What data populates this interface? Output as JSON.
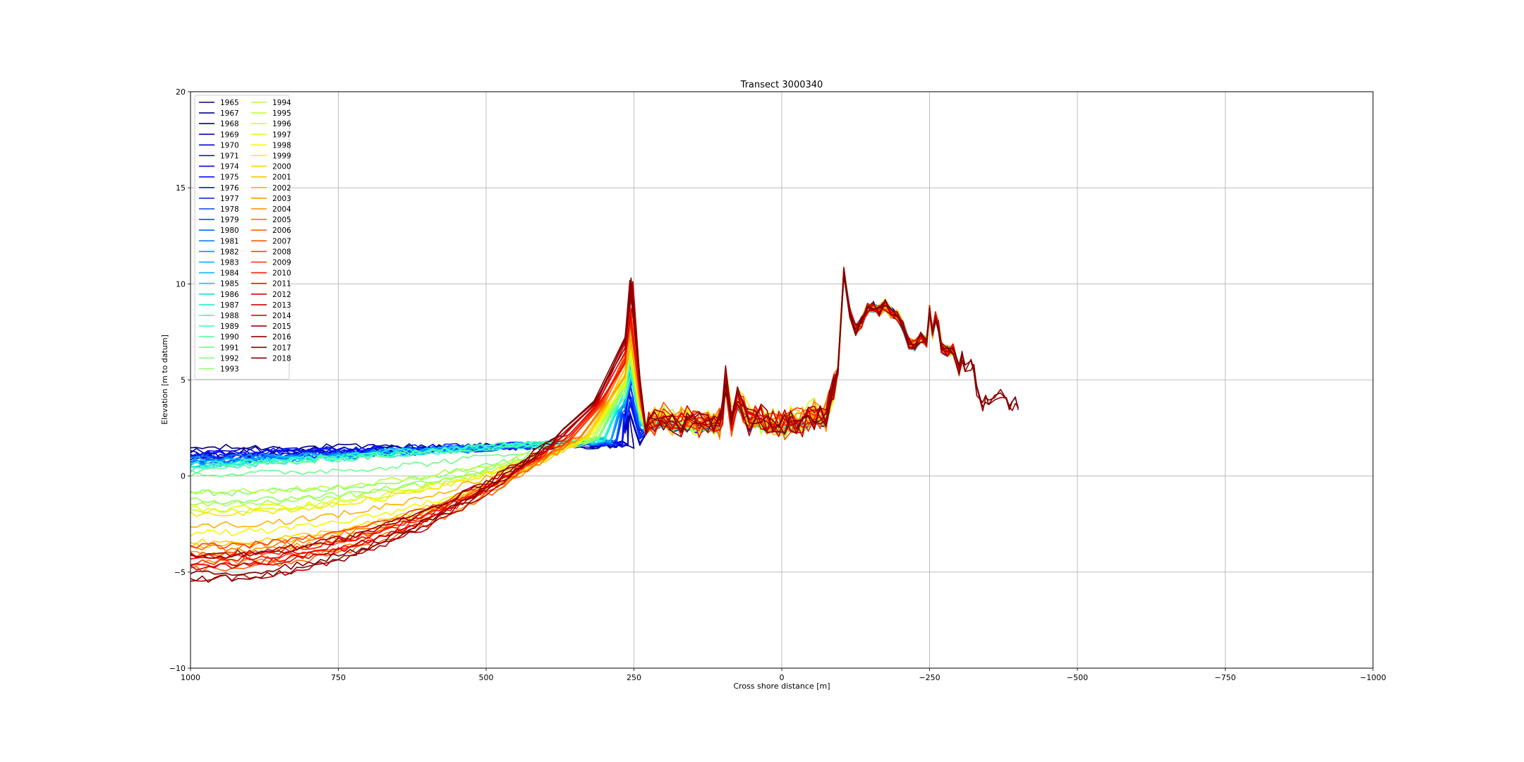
{
  "chart_data": {
    "type": "line",
    "title": "Transect 3000340",
    "xlabel": "Cross shore distance [m]",
    "ylabel": "Elevation [m to datum]",
    "xlim": [
      1000,
      -1000
    ],
    "ylim": [
      -10,
      20
    ],
    "x_ticks": [
      1000,
      750,
      500,
      250,
      0,
      -250,
      -500,
      -750,
      -1000
    ],
    "x_tick_labels": [
      "1000",
      "750",
      "500",
      "250",
      "0",
      "−250",
      "−500",
      "−750",
      "−1000"
    ],
    "y_ticks": [
      -10,
      -5,
      0,
      5,
      10,
      15,
      20
    ],
    "y_tick_labels": [
      "−10",
      "−5",
      "0",
      "5",
      "10",
      "15",
      "20"
    ],
    "grid": true,
    "legend_position": "upper-left",
    "legend_columns": 2,
    "colormap": "jet",
    "series": [
      {
        "name": "1965",
        "color": "#000080"
      },
      {
        "name": "1967",
        "color": "#00008f"
      },
      {
        "name": "1968",
        "color": "#0000a3"
      },
      {
        "name": "1969",
        "color": "#0000b6"
      },
      {
        "name": "1970",
        "color": "#0000ca"
      },
      {
        "name": "1971",
        "color": "#0000dd"
      },
      {
        "name": "1974",
        "color": "#0000f1"
      },
      {
        "name": "1975",
        "color": "#0008ff"
      },
      {
        "name": "1976",
        "color": "#0018ff"
      },
      {
        "name": "1977",
        "color": "#002cff"
      },
      {
        "name": "1978",
        "color": "#0040ff"
      },
      {
        "name": "1979",
        "color": "#0054ff"
      },
      {
        "name": "1980",
        "color": "#0068ff"
      },
      {
        "name": "1981",
        "color": "#007cff"
      },
      {
        "name": "1982",
        "color": "#0090ff"
      },
      {
        "name": "1983",
        "color": "#00a4ff"
      },
      {
        "name": "1984",
        "color": "#00b8ff"
      },
      {
        "name": "1985",
        "color": "#00ccfc"
      },
      {
        "name": "1986",
        "color": "#0ce0eb"
      },
      {
        "name": "1987",
        "color": "#1ff3d8"
      },
      {
        "name": "1988",
        "color": "#32ffc4"
      },
      {
        "name": "1989",
        "color": "#45ffb1"
      },
      {
        "name": "1990",
        "color": "#58ff9e"
      },
      {
        "name": "1991",
        "color": "#6cff8a"
      },
      {
        "name": "1992",
        "color": "#80ff77"
      },
      {
        "name": "1993",
        "color": "#93ff64"
      },
      {
        "name": "1994",
        "color": "#a6ff50"
      },
      {
        "name": "1995",
        "color": "#baff3d"
      },
      {
        "name": "1996",
        "color": "#cdff2a"
      },
      {
        "name": "1997",
        "color": "#e0ff17"
      },
      {
        "name": "1998",
        "color": "#f4f802"
      },
      {
        "name": "1999",
        "color": "#ffe600"
      },
      {
        "name": "2000",
        "color": "#ffd400"
      },
      {
        "name": "2001",
        "color": "#ffc100"
      },
      {
        "name": "2002",
        "color": "#ffaf00"
      },
      {
        "name": "2003",
        "color": "#ff9c00"
      },
      {
        "name": "2004",
        "color": "#ff8a00"
      },
      {
        "name": "2005",
        "color": "#ff7700"
      },
      {
        "name": "2006",
        "color": "#ff6500"
      },
      {
        "name": "2007",
        "color": "#ff5200"
      },
      {
        "name": "2008",
        "color": "#ff4000"
      },
      {
        "name": "2009",
        "color": "#ff2d00"
      },
      {
        "name": "2010",
        "color": "#ff1b00"
      },
      {
        "name": "2011",
        "color": "#f80800"
      },
      {
        "name": "2012",
        "color": "#e40000"
      },
      {
        "name": "2013",
        "color": "#d00000"
      },
      {
        "name": "2014",
        "color": "#bc0000"
      },
      {
        "name": "2015",
        "color": "#a80000"
      },
      {
        "name": "2016",
        "color": "#940000"
      },
      {
        "name": "2017",
        "color": "#8a0000"
      },
      {
        "name": "2018",
        "color": "#800000"
      }
    ],
    "profile_points": {
      "dune_x": [
        230,
        225,
        215,
        200,
        185,
        170,
        160,
        150,
        140,
        125,
        115,
        105,
        100,
        95,
        85,
        75,
        65,
        55,
        45,
        35,
        25,
        15,
        5,
        -5,
        -15,
        -25,
        -35,
        -45,
        -55,
        -65,
        -75,
        -80,
        -88,
        -95,
        -105,
        -115,
        -125,
        -135,
        -145,
        -155,
        -165,
        -175,
        -185,
        -195,
        -205,
        -215,
        -225,
        -235,
        -245,
        -250,
        -255,
        -260,
        -265,
        -270,
        -280,
        -290,
        -300,
        -305,
        -310,
        -320,
        -325,
        -330,
        -340,
        -345,
        -350,
        -360,
        -370,
        -380,
        -385,
        -390,
        -395,
        -400
      ],
      "dune_y": [
        2.4,
        2.6,
        2.7,
        2.8,
        2.6,
        2.6,
        2.7,
        2.5,
        2.5,
        2.6,
        2.5,
        2.5,
        3.0,
        4.8,
        2.6,
        3.8,
        3.2,
        2.6,
        2.9,
        2.7,
        2.5,
        2.6,
        2.5,
        2.4,
        2.6,
        2.5,
        2.6,
        2.8,
        3.0,
        2.9,
        2.8,
        3.5,
        4.5,
        5.5,
        10.6,
        8.5,
        7.6,
        8.0,
        8.7,
        8.8,
        8.6,
        8.9,
        8.5,
        8.4,
        7.8,
        6.9,
        6.8,
        7.2,
        7.0,
        8.6,
        7.4,
        8.3,
        7.8,
        6.7,
        6.5,
        6.6,
        5.5,
        6.2,
        5.6,
        5.8,
        5.7,
        4.4,
        3.6,
        4.0,
        3.9,
        4.2,
        4.3,
        4.0,
        3.7,
        3.6,
        3.9,
        3.6
      ]
    }
  }
}
